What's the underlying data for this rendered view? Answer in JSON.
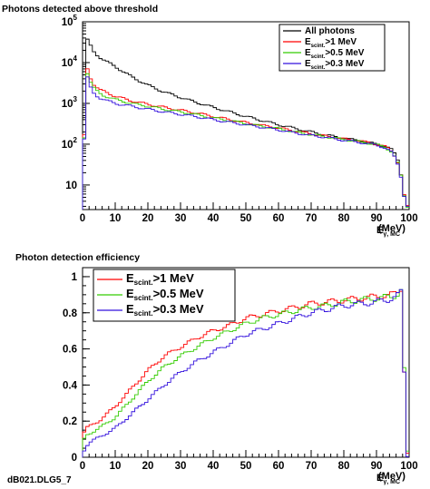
{
  "footer": "dB021.DLG5_7",
  "chart_data": [
    {
      "type": "line",
      "title": "Photons detected above threshold",
      "xlabel_main": "E",
      "xlabel_sub": "γ, MC",
      "xlabel_unit": "(MeV)",
      "xlim": [
        0,
        100
      ],
      "ylim": [
        2.5,
        100000
      ],
      "yscale": "log",
      "xticks": [
        "0",
        "10",
        "20",
        "30",
        "40",
        "50",
        "60",
        "70",
        "80",
        "90",
        "100"
      ],
      "yticks": [
        {
          "v": 10,
          "base": "10",
          "exp": ""
        },
        {
          "v": 100,
          "base": "10",
          "exp": "2"
        },
        {
          "v": 1000,
          "base": "10",
          "exp": "3"
        },
        {
          "v": 10000,
          "base": "10",
          "exp": "4"
        },
        {
          "v": 100000,
          "base": "10",
          "exp": "5"
        }
      ],
      "legend_position": "top-right",
      "series": [
        {
          "name": "All photons",
          "name_main": "All photons",
          "name_sub": "",
          "name_rest": "",
          "color": "#000000",
          "x": [
            0,
            1,
            2,
            3,
            5,
            7,
            10,
            15,
            20,
            25,
            30,
            35,
            40,
            45,
            50,
            55,
            60,
            65,
            70,
            75,
            80,
            85,
            90,
            93,
            95,
            97,
            98,
            99,
            100
          ],
          "y": [
            5,
            40000,
            32000,
            20000,
            14000,
            11000,
            8000,
            4500,
            2800,
            1900,
            1400,
            1050,
            800,
            620,
            480,
            380,
            300,
            245,
            200,
            165,
            140,
            120,
            100,
            88,
            70,
            35,
            10,
            3,
            3
          ]
        },
        {
          "name": "Escint.>1 MeV",
          "name_main": "E",
          "name_sub": "scint.",
          "name_rest": ">1 MeV",
          "color": "#ff0000",
          "x": [
            0,
            1,
            2,
            3,
            5,
            7,
            10,
            15,
            20,
            25,
            30,
            35,
            40,
            45,
            50,
            55,
            60,
            65,
            70,
            75,
            80,
            85,
            90,
            93,
            95,
            97,
            98,
            99,
            100
          ],
          "y": [
            3,
            9000,
            5500,
            3200,
            2200,
            1900,
            1500,
            1150,
            950,
            800,
            680,
            580,
            480,
            400,
            340,
            290,
            250,
            210,
            180,
            155,
            135,
            120,
            100,
            85,
            65,
            30,
            10,
            3,
            3
          ]
        },
        {
          "name": "Escint.>0.5 MeV",
          "name_main": "E",
          "name_sub": "scint.",
          "name_rest": ">0.5 MeV",
          "color": "#33cc00",
          "x": [
            0,
            1,
            2,
            3,
            5,
            7,
            10,
            15,
            20,
            25,
            30,
            35,
            40,
            45,
            50,
            55,
            60,
            65,
            70,
            75,
            80,
            85,
            90,
            93,
            95,
            97,
            98,
            99,
            100
          ],
          "y": [
            3,
            7500,
            4200,
            2600,
            1800,
            1500,
            1250,
            1000,
            850,
            720,
            620,
            530,
            440,
            380,
            320,
            275,
            240,
            200,
            172,
            150,
            130,
            115,
            98,
            82,
            62,
            28,
            10,
            3,
            3
          ]
        },
        {
          "name": "Escint.>0.3 MeV",
          "name_main": "E",
          "name_sub": "scint.",
          "name_rest": ">0.3 MeV",
          "color": "#3311dd",
          "x": [
            0,
            1,
            2,
            3,
            5,
            7,
            10,
            15,
            20,
            25,
            30,
            35,
            40,
            45,
            50,
            55,
            60,
            65,
            70,
            75,
            80,
            85,
            90,
            93,
            95,
            97,
            98,
            99,
            100
          ],
          "y": [
            3,
            6000,
            3000,
            1900,
            1400,
            1200,
            1000,
            850,
            720,
            620,
            540,
            470,
            400,
            345,
            300,
            260,
            225,
            190,
            165,
            145,
            125,
            110,
            95,
            80,
            60,
            27,
            10,
            3,
            3
          ]
        }
      ]
    },
    {
      "type": "line",
      "title": "Photon detection efficiency",
      "xlabel_main": "E",
      "xlabel_sub": "γ, MC",
      "xlabel_unit": "(MeV)",
      "xlim": [
        0,
        100
      ],
      "ylim": [
        0,
        1.05
      ],
      "yscale": "linear",
      "xticks": [
        "0",
        "10",
        "20",
        "30",
        "40",
        "50",
        "60",
        "70",
        "80",
        "90",
        "100"
      ],
      "yticks": [
        {
          "v": 0,
          "base": "0",
          "exp": ""
        },
        {
          "v": 0.2,
          "base": "0.2",
          "exp": ""
        },
        {
          "v": 0.4,
          "base": "0.4",
          "exp": ""
        },
        {
          "v": 0.6,
          "base": "0.6",
          "exp": ""
        },
        {
          "v": 0.8,
          "base": "0.8",
          "exp": ""
        },
        {
          "v": 1,
          "base": "1",
          "exp": ""
        }
      ],
      "legend_position": "top-left",
      "series": [
        {
          "name": "Escint.>1 MeV",
          "name_main": "E",
          "name_sub": "scint.",
          "name_rest": ">1 MeV",
          "color": "#ff0000",
          "x": [
            0,
            1,
            2,
            5,
            10,
            15,
            20,
            25,
            30,
            35,
            40,
            45,
            50,
            55,
            60,
            65,
            70,
            75,
            80,
            85,
            90,
            95,
            97,
            98,
            99
          ],
          "y": [
            0.12,
            0.16,
            0.17,
            0.2,
            0.28,
            0.38,
            0.48,
            0.56,
            0.61,
            0.66,
            0.7,
            0.73,
            0.77,
            0.79,
            0.81,
            0.83,
            0.85,
            0.86,
            0.87,
            0.88,
            0.89,
            0.9,
            0.92,
            0.95,
            0.02
          ]
        },
        {
          "name": "Escint.>0.5 MeV",
          "name_main": "E",
          "name_sub": "scint.",
          "name_rest": ">0.5 MeV",
          "color": "#33cc00",
          "x": [
            0,
            1,
            2,
            5,
            10,
            15,
            20,
            25,
            30,
            35,
            40,
            45,
            50,
            55,
            60,
            65,
            70,
            75,
            80,
            85,
            90,
            95,
            97,
            98,
            99
          ],
          "y": [
            0.08,
            0.12,
            0.13,
            0.16,
            0.22,
            0.32,
            0.42,
            0.5,
            0.56,
            0.61,
            0.66,
            0.7,
            0.74,
            0.77,
            0.79,
            0.81,
            0.83,
            0.84,
            0.86,
            0.87,
            0.88,
            0.89,
            0.91,
            0.94,
            0.02
          ]
        },
        {
          "name": "Escint.>0.3 MeV",
          "name_main": "E",
          "name_sub": "scint.",
          "name_rest": ">0.3 MeV",
          "color": "#3311dd",
          "x": [
            0,
            1,
            2,
            5,
            10,
            15,
            20,
            25,
            30,
            35,
            40,
            45,
            50,
            55,
            60,
            65,
            70,
            75,
            80,
            85,
            90,
            95,
            97,
            98,
            99
          ],
          "y": [
            0.02,
            0.06,
            0.08,
            0.11,
            0.16,
            0.24,
            0.32,
            0.4,
            0.47,
            0.53,
            0.58,
            0.63,
            0.68,
            0.71,
            0.74,
            0.77,
            0.8,
            0.82,
            0.84,
            0.85,
            0.86,
            0.88,
            0.9,
            0.93,
            0.02
          ]
        }
      ]
    }
  ]
}
